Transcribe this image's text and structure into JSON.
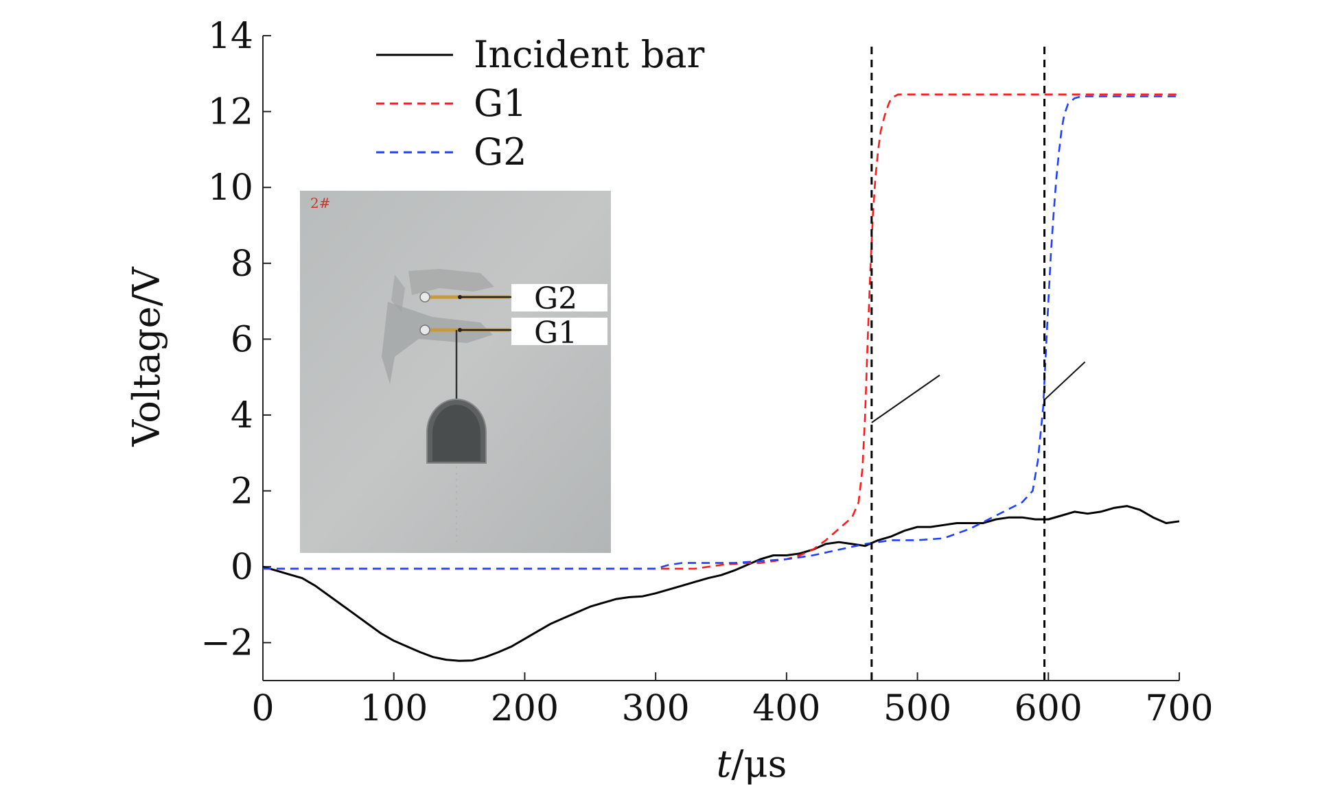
{
  "chart_data": {
    "type": "line",
    "xlabel_italic": "t",
    "xlabel_rest": "/μs",
    "ylabel": "Voltage/V",
    "xlim": [
      0,
      700
    ],
    "ylim": [
      -3,
      14
    ],
    "xticks": [
      0,
      100,
      200,
      300,
      400,
      500,
      600,
      700
    ],
    "yticks": [
      {
        "value": -2,
        "label": "−2"
      },
      {
        "value": 0,
        "label": "0"
      },
      {
        "value": 2,
        "label": "2"
      },
      {
        "value": 4,
        "label": "4"
      },
      {
        "value": 6,
        "label": "6"
      },
      {
        "value": 8,
        "label": "8"
      },
      {
        "value": 10,
        "label": "10"
      },
      {
        "value": 12,
        "label": "12"
      },
      {
        "value": 14,
        "label": "14"
      }
    ],
    "legend_position": "top-left",
    "series": [
      {
        "name": "Incident bar",
        "color": "#000000",
        "dash": "solid",
        "x": [
          0,
          10,
          20,
          30,
          40,
          50,
          60,
          70,
          80,
          90,
          100,
          110,
          120,
          130,
          140,
          150,
          160,
          170,
          180,
          190,
          200,
          210,
          220,
          230,
          240,
          250,
          260,
          270,
          280,
          290,
          300,
          310,
          320,
          330,
          340,
          350,
          360,
          370,
          380,
          390,
          400,
          410,
          420,
          430,
          440,
          450,
          460,
          470,
          480,
          490,
          500,
          510,
          520,
          530,
          540,
          550,
          560,
          570,
          580,
          590,
          600,
          610,
          620,
          630,
          640,
          650,
          660,
          670,
          680,
          690,
          700
        ],
        "y": [
          0,
          -0.1,
          -0.2,
          -0.3,
          -0.5,
          -0.75,
          -1.0,
          -1.25,
          -1.5,
          -1.75,
          -1.95,
          -2.1,
          -2.25,
          -2.38,
          -2.45,
          -2.48,
          -2.47,
          -2.38,
          -2.25,
          -2.1,
          -1.9,
          -1.7,
          -1.5,
          -1.35,
          -1.2,
          -1.05,
          -0.95,
          -0.85,
          -0.8,
          -0.78,
          -0.7,
          -0.6,
          -0.5,
          -0.4,
          -0.3,
          -0.22,
          -0.1,
          0.05,
          0.2,
          0.3,
          0.3,
          0.35,
          0.45,
          0.6,
          0.65,
          0.6,
          0.55,
          0.7,
          0.8,
          0.95,
          1.05,
          1.05,
          1.1,
          1.15,
          1.15,
          1.15,
          1.25,
          1.3,
          1.3,
          1.25,
          1.25,
          1.35,
          1.45,
          1.4,
          1.45,
          1.55,
          1.6,
          1.5,
          1.3,
          1.15,
          1.2
        ]
      },
      {
        "name": "G1",
        "color": "#ff1a1a",
        "dash": "dashed",
        "x": [
          0,
          300,
          310,
          330,
          350,
          370,
          380,
          390,
          400,
          410,
          420,
          430,
          440,
          450,
          455,
          458,
          460,
          462,
          464,
          466,
          468,
          470,
          472,
          475,
          478,
          480,
          485,
          490,
          500,
          600,
          700
        ],
        "y": [
          -0.05,
          -0.05,
          -0.05,
          -0.05,
          0.05,
          0.1,
          0.1,
          0.15,
          0.2,
          0.3,
          0.45,
          0.7,
          1.0,
          1.3,
          1.7,
          2.6,
          4.0,
          6.0,
          7.8,
          9.3,
          10.3,
          11.0,
          11.5,
          11.9,
          12.2,
          12.35,
          12.45,
          12.45,
          12.45,
          12.45,
          12.45
        ]
      },
      {
        "name": "G2",
        "color": "#1f3fff",
        "dash": "dashed",
        "x": [
          0,
          300,
          310,
          320,
          340,
          360,
          380,
          400,
          420,
          440,
          460,
          480,
          500,
          520,
          540,
          560,
          580,
          588,
          592,
          596,
          598,
          600,
          602,
          604,
          606,
          608,
          610,
          612,
          615,
          620,
          625,
          700
        ],
        "y": [
          -0.05,
          -0.05,
          0.05,
          0.1,
          0.1,
          0.1,
          0.15,
          0.2,
          0.3,
          0.45,
          0.6,
          0.7,
          0.7,
          0.75,
          1.0,
          1.35,
          1.7,
          2.0,
          2.8,
          4.2,
          5.6,
          7.0,
          8.3,
          9.3,
          10.2,
          10.9,
          11.5,
          11.9,
          12.2,
          12.35,
          12.4,
          12.4
        ]
      }
    ],
    "vlines": [
      {
        "x": 465,
        "color": "#000000",
        "dash": "dashed"
      },
      {
        "x": 597,
        "color": "#000000",
        "dash": "dashed"
      }
    ],
    "leaders": [
      {
        "from": [
          465,
          3.8
        ],
        "to": [
          517,
          5.05
        ]
      },
      {
        "from": [
          597,
          4.4
        ],
        "to": [
          628,
          5.4
        ]
      }
    ],
    "inset": {
      "labels": [
        "G2",
        "G1"
      ],
      "mark": "2#"
    }
  }
}
